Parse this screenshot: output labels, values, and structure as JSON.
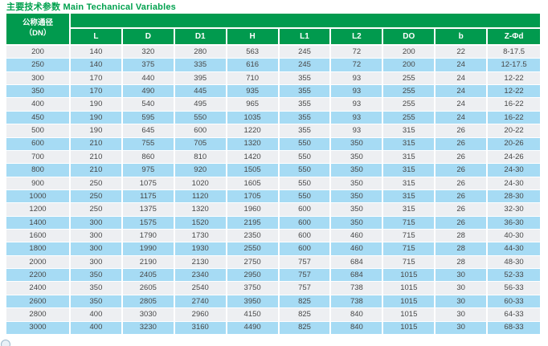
{
  "page": {
    "title": "主要技术参数 Main Techanical Variables"
  },
  "colors": {
    "header_green": "#019a4e",
    "title_green": "#00a14e",
    "row_gray": "#edeff2",
    "row_blue": "#a6dbf4",
    "data_text": "#474747",
    "header_text": "#ffffff"
  },
  "table": {
    "dn_header_line1": "公称通径",
    "dn_header_line2": "（DN）",
    "columns": [
      "L",
      "D",
      "D1",
      "H",
      "L1",
      "L2",
      "DO",
      "b",
      "Z-Φd"
    ],
    "rows": [
      {
        "dn": "200",
        "values": [
          "140",
          "320",
          "280",
          "563",
          "245",
          "72",
          "200",
          "22",
          "8-17.5"
        ]
      },
      {
        "dn": "250",
        "values": [
          "140",
          "375",
          "335",
          "616",
          "245",
          "72",
          "200",
          "24",
          "12-17.5"
        ]
      },
      {
        "dn": "300",
        "values": [
          "170",
          "440",
          "395",
          "710",
          "355",
          "93",
          "255",
          "24",
          "12-22"
        ]
      },
      {
        "dn": "350",
        "values": [
          "170",
          "490",
          "445",
          "935",
          "355",
          "93",
          "255",
          "24",
          "12-22"
        ]
      },
      {
        "dn": "400",
        "values": [
          "190",
          "540",
          "495",
          "965",
          "355",
          "93",
          "255",
          "24",
          "16-22"
        ]
      },
      {
        "dn": "450",
        "values": [
          "190",
          "595",
          "550",
          "1035",
          "355",
          "93",
          "255",
          "24",
          "16-22"
        ]
      },
      {
        "dn": "500",
        "values": [
          "190",
          "645",
          "600",
          "1220",
          "355",
          "93",
          "315",
          "26",
          "20-22"
        ]
      },
      {
        "dn": "600",
        "values": [
          "210",
          "755",
          "705",
          "1320",
          "550",
          "350",
          "315",
          "26",
          "20-26"
        ]
      },
      {
        "dn": "700",
        "values": [
          "210",
          "860",
          "810",
          "1420",
          "550",
          "350",
          "315",
          "26",
          "24-26"
        ]
      },
      {
        "dn": "800",
        "values": [
          "210",
          "975",
          "920",
          "1505",
          "550",
          "350",
          "315",
          "26",
          "24-30"
        ]
      },
      {
        "dn": "900",
        "values": [
          "250",
          "1075",
          "1020",
          "1605",
          "550",
          "350",
          "315",
          "26",
          "24-30"
        ]
      },
      {
        "dn": "1000",
        "values": [
          "250",
          "1175",
          "1120",
          "1705",
          "550",
          "350",
          "315",
          "26",
          "28-30"
        ]
      },
      {
        "dn": "1200",
        "values": [
          "250",
          "1375",
          "1320",
          "1960",
          "600",
          "350",
          "315",
          "26",
          "32-30"
        ]
      },
      {
        "dn": "1400",
        "values": [
          "300",
          "1575",
          "1520",
          "2195",
          "600",
          "350",
          "715",
          "26",
          "36-30"
        ]
      },
      {
        "dn": "1600",
        "values": [
          "300",
          "1790",
          "1730",
          "2350",
          "600",
          "460",
          "715",
          "28",
          "40-30"
        ]
      },
      {
        "dn": "1800",
        "values": [
          "300",
          "1990",
          "1930",
          "2550",
          "600",
          "460",
          "715",
          "28",
          "44-30"
        ]
      },
      {
        "dn": "2000",
        "values": [
          "300",
          "2190",
          "2130",
          "2750",
          "757",
          "684",
          "715",
          "28",
          "48-30"
        ]
      },
      {
        "dn": "2200",
        "values": [
          "350",
          "2405",
          "2340",
          "2950",
          "757",
          "684",
          "1015",
          "30",
          "52-33"
        ]
      },
      {
        "dn": "2400",
        "values": [
          "350",
          "2605",
          "2540",
          "3750",
          "757",
          "738",
          "1015",
          "30",
          "56-33"
        ]
      },
      {
        "dn": "2600",
        "values": [
          "350",
          "2805",
          "2740",
          "3950",
          "825",
          "738",
          "1015",
          "30",
          "60-33"
        ]
      },
      {
        "dn": "2800",
        "values": [
          "400",
          "3030",
          "2960",
          "4150",
          "825",
          "840",
          "1015",
          "30",
          "64-33"
        ]
      },
      {
        "dn": "3000",
        "values": [
          "400",
          "3230",
          "3160",
          "4490",
          "825",
          "840",
          "1015",
          "30",
          "68-33"
        ]
      }
    ]
  },
  "decoration": {
    "corner_glyph": "partial-circle"
  }
}
